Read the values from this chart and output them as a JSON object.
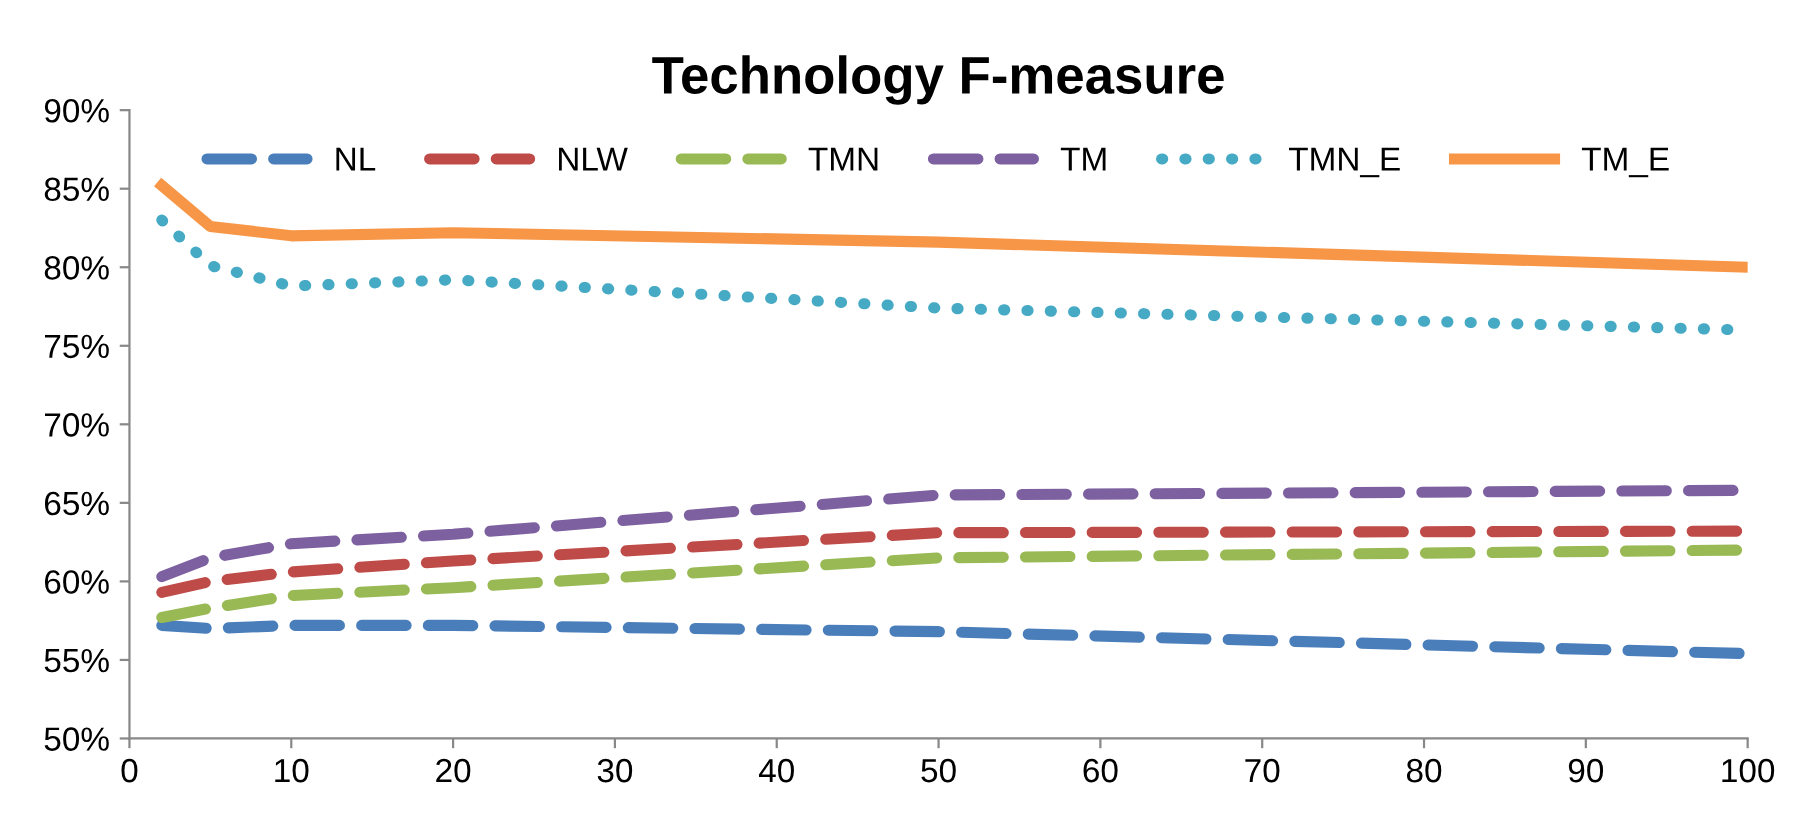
{
  "chart_data": {
    "type": "line",
    "title": "Technology F-measure",
    "x": [
      2,
      5,
      10,
      20,
      50,
      100
    ],
    "series": [
      {
        "name": "NL",
        "color": "#4a7ebb",
        "line_style": "dashed",
        "values": [
          57.2,
          57.0,
          57.2,
          57.2,
          56.8,
          55.4
        ]
      },
      {
        "name": "NLW",
        "color": "#be4b48",
        "line_style": "dashed",
        "values": [
          59.3,
          60.0,
          60.6,
          61.3,
          63.1,
          63.2
        ]
      },
      {
        "name": "TMN",
        "color": "#98b954",
        "line_style": "dashed",
        "values": [
          57.7,
          58.3,
          59.1,
          59.6,
          61.5,
          62.0
        ]
      },
      {
        "name": "TM",
        "color": "#7d60a0",
        "line_style": "dashed",
        "values": [
          60.3,
          61.5,
          62.4,
          63.0,
          65.5,
          65.8
        ]
      },
      {
        "name": "TMN_E",
        "color": "#46aac5",
        "line_style": "dotted",
        "values": [
          83.0,
          80.1,
          78.8,
          79.2,
          77.4,
          76.0
        ]
      },
      {
        "name": "TM_E",
        "color": "#f79646",
        "line_style": "solid",
        "values": [
          85.2,
          82.6,
          82.0,
          82.2,
          81.6,
          80.0
        ]
      }
    ],
    "xlim": [
      0,
      100
    ],
    "xticks": [
      0,
      10,
      20,
      30,
      40,
      50,
      60,
      70,
      80,
      90,
      100
    ],
    "ylim": [
      50,
      90
    ],
    "yticks": [
      {
        "value": 50,
        "label": "50%"
      },
      {
        "value": 55,
        "label": "55%"
      },
      {
        "value": 60,
        "label": "60%"
      },
      {
        "value": 65,
        "label": "65%"
      },
      {
        "value": 70,
        "label": "70%"
      },
      {
        "value": 75,
        "label": "75%"
      },
      {
        "value": 80,
        "label": "80%"
      },
      {
        "value": 85,
        "label": "85%"
      },
      {
        "value": 90,
        "label": "90%"
      }
    ],
    "grid": false,
    "legend": "top",
    "marker": "none"
  }
}
